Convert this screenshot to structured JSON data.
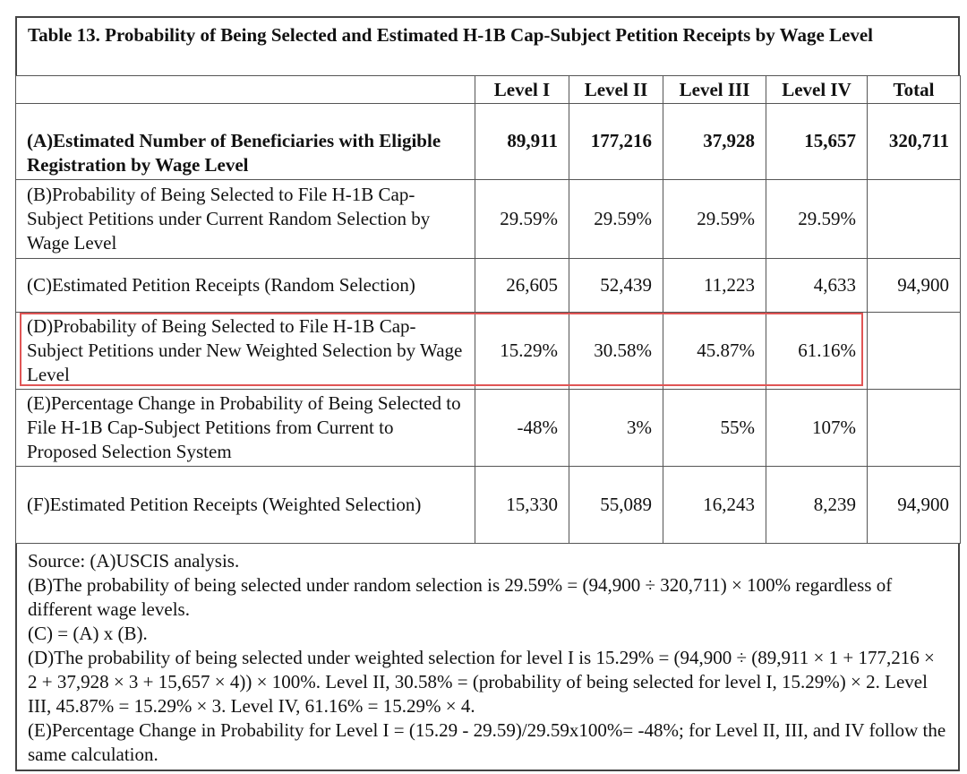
{
  "title": "Table 13. Probability of Being Selected and Estimated H-1B Cap-Subject Petition Receipts by Wage Level",
  "columns": [
    "",
    "Level I",
    "Level II",
    "Level III",
    "Level IV",
    "Total"
  ],
  "rows": [
    {
      "label": "(A)Estimated Number of Beneficiaries with Eligible Registration by Wage Level",
      "values": [
        "89,911",
        "177,216",
        "37,928",
        "15,657",
        "320,711"
      ]
    },
    {
      "label": "(B)Probability of Being Selected to File H-1B Cap-Subject Petitions under Current Random Selection by Wage Level",
      "values": [
        "29.59%",
        "29.59%",
        "29.59%",
        "29.59%",
        ""
      ]
    },
    {
      "label": "(C)Estimated Petition Receipts (Random Selection)",
      "values": [
        "26,605",
        "52,439",
        "11,223",
        "4,633",
        "94,900"
      ]
    },
    {
      "label": "(D)Probability of Being Selected to File H-1B Cap-Subject Petitions under New Weighted Selection by Wage Level",
      "values": [
        "15.29%",
        "30.58%",
        "45.87%",
        "61.16%",
        ""
      ]
    },
    {
      "label": "(E)Percentage Change in Probability of Being Selected to File H-1B Cap-Subject Petitions from Current to Proposed Selection System",
      "values": [
        "-48%",
        "3%",
        "55%",
        "107%",
        ""
      ]
    },
    {
      "label": "(F)Estimated Petition Receipts (Weighted Selection)",
      "values": [
        "15,330",
        "55,089",
        "16,243",
        "8,239",
        "94,900"
      ]
    }
  ],
  "highlight": {
    "row": "D",
    "color": "#e05555"
  },
  "notes": [
    "Source: (A)USCIS analysis.",
    "(B)The probability of being selected under random selection is 29.59% = (94,900 ÷ 320,711) × 100% regardless of different wage levels.",
    "(C) = (A) x (B).",
    "(D)The probability of being selected under weighted selection for level I is 15.29% = (94,900 ÷ (89,911 × 1 + 177,216 × 2 + 37,928 × 3 + 15,657 × 4)) × 100%. Level II, 30.58% = (probability of being selected for level I, 15.29%) × 2. Level III, 45.87% = 15.29% × 3. Level IV, 61.16% = 15.29% × 4.",
    "(E)Percentage Change in Probability for Level I = (15.29 - 29.59)/29.59x100%= -48%; for Level II, III, and IV follow the same calculation."
  ]
}
